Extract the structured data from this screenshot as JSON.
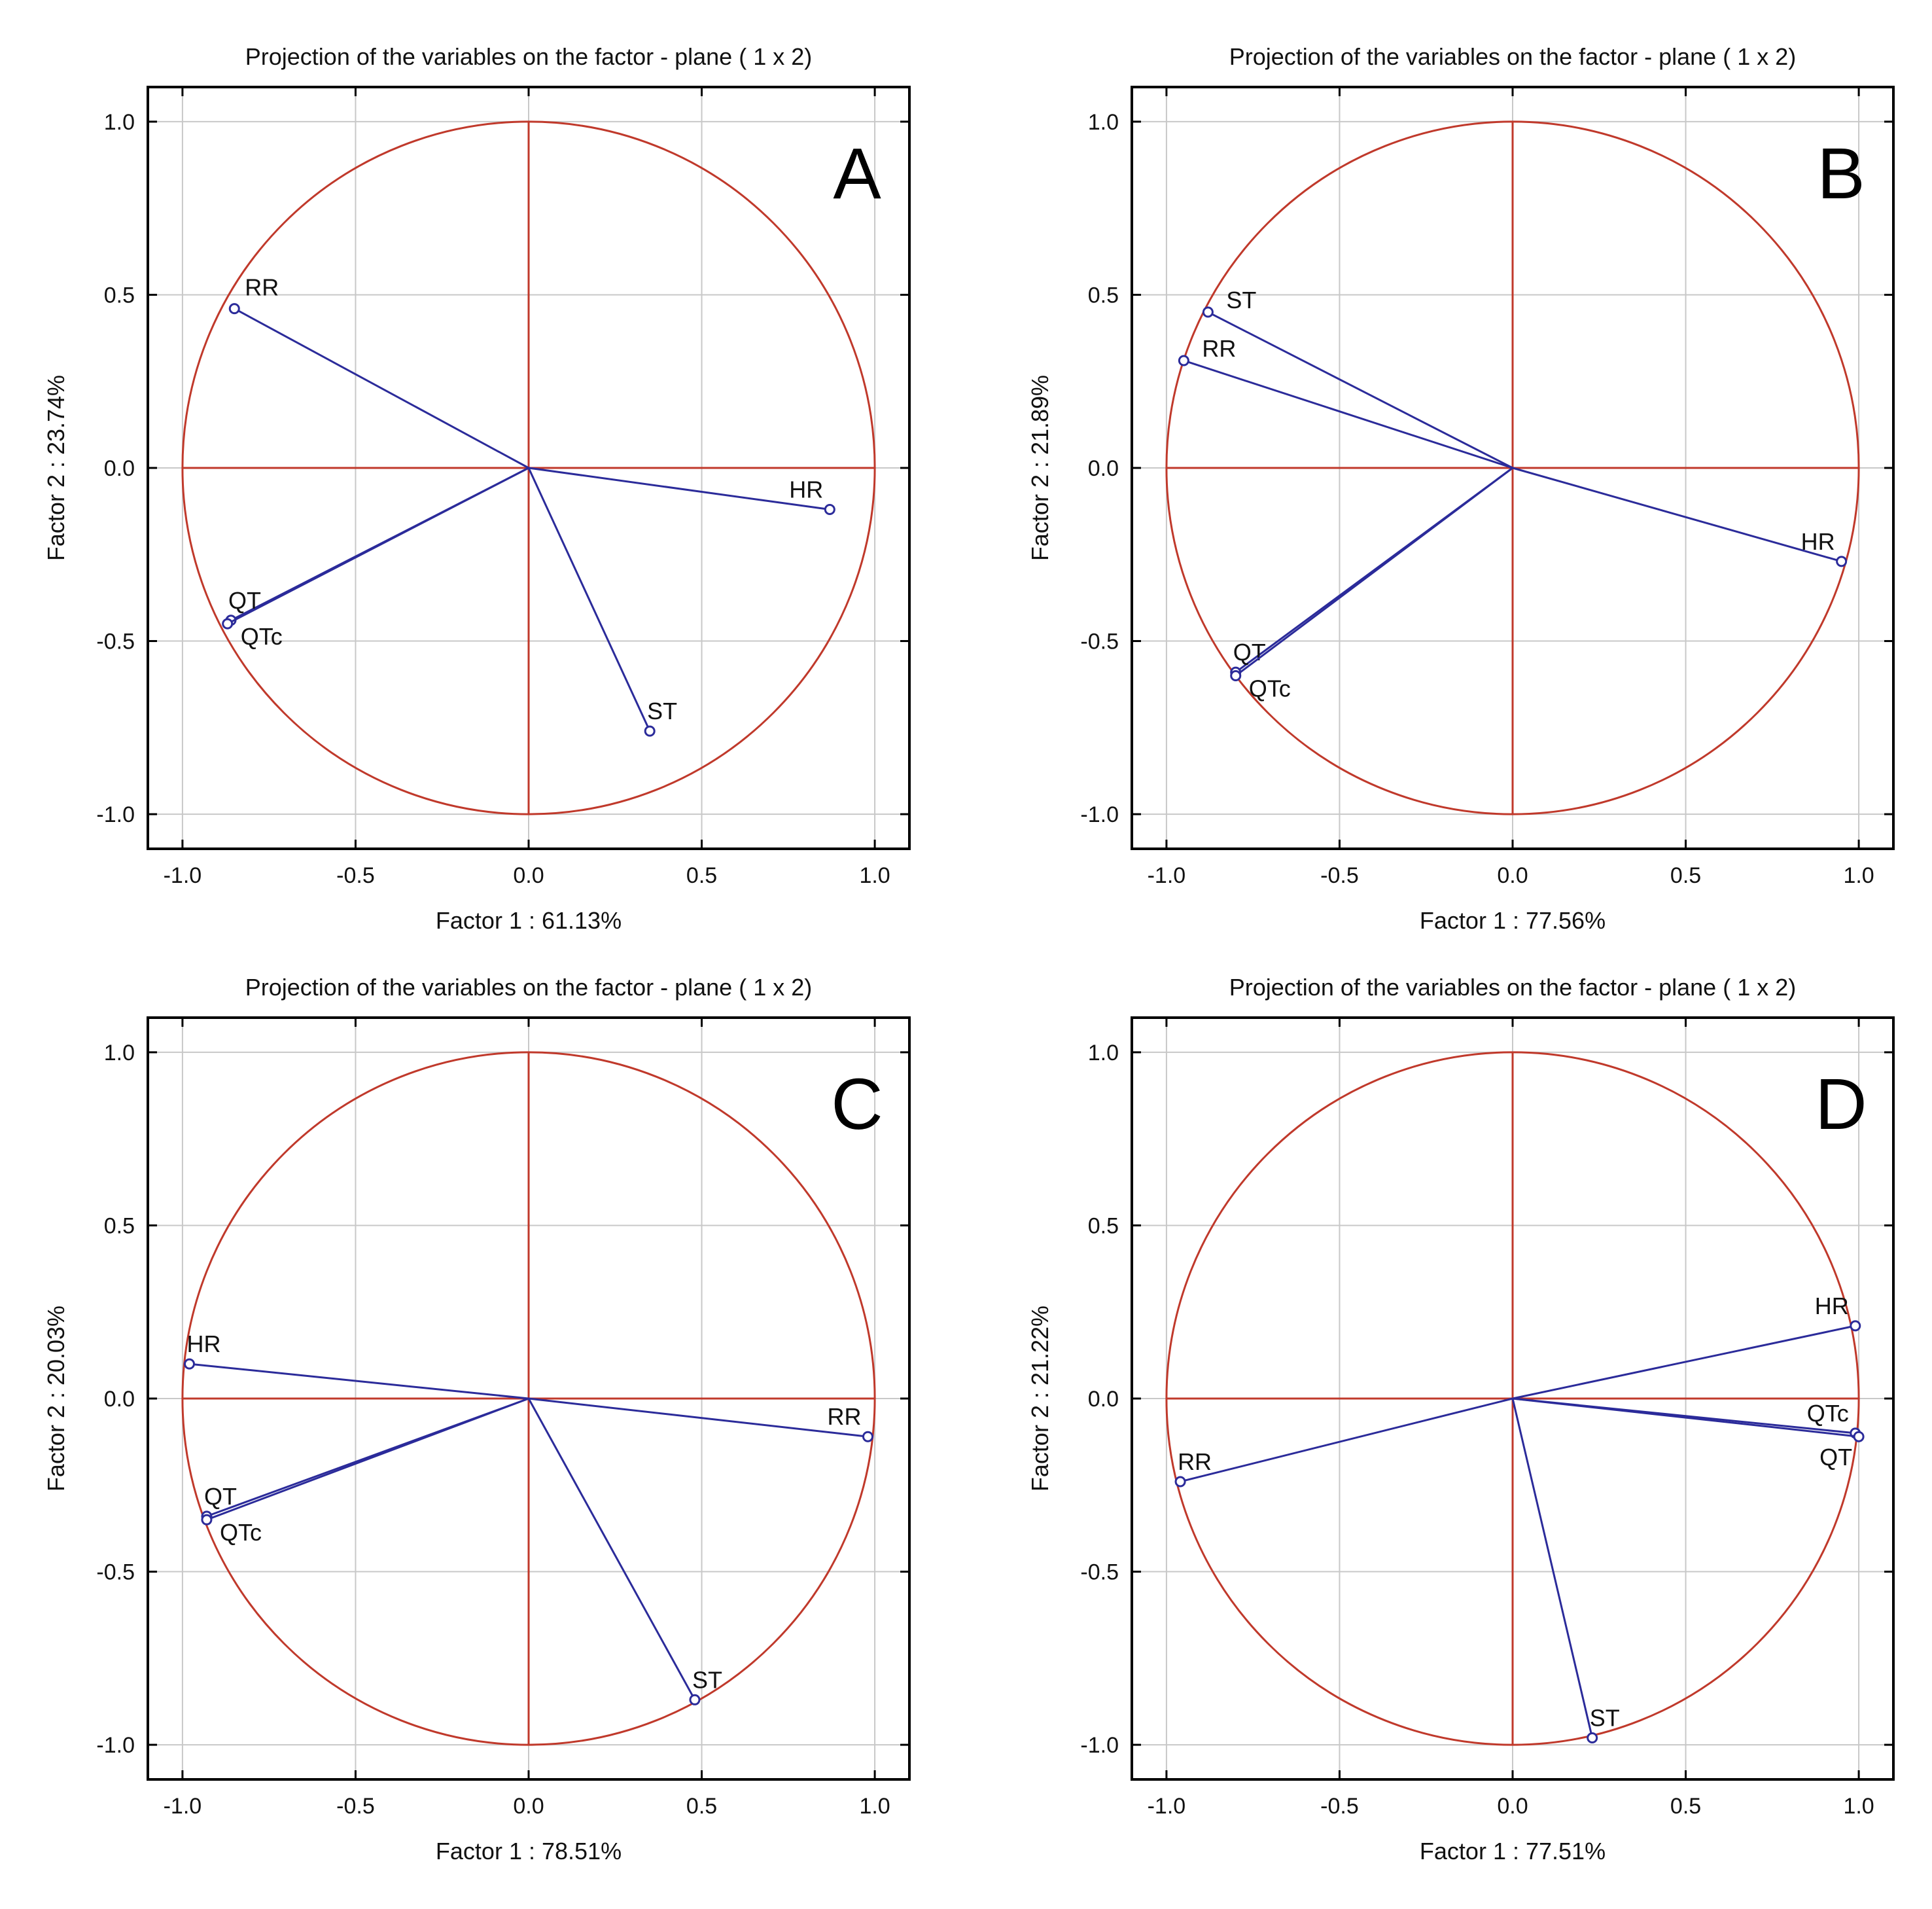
{
  "figure": {
    "panels_count": 4
  },
  "chart_data": [
    {
      "type": "scatter",
      "panel_label": "A",
      "title": "Projection of the variables on the factor - plane (  1 x  2)",
      "xlabel": "Factor 1 : 61.13%",
      "ylabel": "Factor 2 : 23.74%",
      "xlim": [
        -1.1,
        1.1
      ],
      "ylim": [
        -1.1,
        1.1
      ],
      "xticks": [
        "-1.0",
        "-0.5",
        "0.0",
        "0.5",
        "1.0"
      ],
      "yticks": [
        "-1.0",
        "-0.5",
        "0.0",
        "0.5",
        "1.0"
      ],
      "unit_circle": true,
      "grid": true,
      "points": [
        {
          "label": "RR",
          "x": -0.85,
          "y": 0.46,
          "label_pos": "above-right"
        },
        {
          "label": "HR",
          "x": 0.87,
          "y": -0.12,
          "label_pos": "above-left"
        },
        {
          "label": "QT",
          "x": -0.86,
          "y": -0.44,
          "label_pos": "above"
        },
        {
          "label": "QTc",
          "x": -0.87,
          "y": -0.45,
          "label_pos": "right-below"
        },
        {
          "label": "ST",
          "x": 0.35,
          "y": -0.76,
          "label_pos": "above"
        }
      ]
    },
    {
      "type": "scatter",
      "panel_label": "B",
      "title": "Projection of the variables on the factor - plane (  1 x  2)",
      "xlabel": "Factor 1 : 77.56%",
      "ylabel": "Factor 2 : 21.89%",
      "xlim": [
        -1.1,
        1.1
      ],
      "ylim": [
        -1.1,
        1.1
      ],
      "xticks": [
        "-1.0",
        "-0.5",
        "0.0",
        "0.5",
        "1.0"
      ],
      "yticks": [
        "-1.0",
        "-0.5",
        "0.0",
        "0.5",
        "1.0"
      ],
      "unit_circle": true,
      "grid": true,
      "points": [
        {
          "label": "ST",
          "x": -0.88,
          "y": 0.45,
          "label_pos": "right"
        },
        {
          "label": "RR",
          "x": -0.95,
          "y": 0.31,
          "label_pos": "right"
        },
        {
          "label": "HR",
          "x": 0.95,
          "y": -0.27,
          "label_pos": "above-left"
        },
        {
          "label": "QT",
          "x": -0.8,
          "y": -0.59,
          "label_pos": "above"
        },
        {
          "label": "QTc",
          "x": -0.8,
          "y": -0.6,
          "label_pos": "right-below"
        }
      ]
    },
    {
      "type": "scatter",
      "panel_label": "C",
      "title": "Projection of the variables on the factor - plane (  1 x  2)",
      "xlabel": "Factor 1 : 78.51%",
      "ylabel": "Factor 2 : 20.03%",
      "xlim": [
        -1.1,
        1.1
      ],
      "ylim": [
        -1.1,
        1.1
      ],
      "xticks": [
        "-1.0",
        "-0.5",
        "0.0",
        "0.5",
        "1.0"
      ],
      "yticks": [
        "-1.0",
        "-0.5",
        "0.0",
        "0.5",
        "1.0"
      ],
      "unit_circle": true,
      "grid": true,
      "points": [
        {
          "label": "HR",
          "x": -0.98,
          "y": 0.1,
          "label_pos": "above"
        },
        {
          "label": "RR",
          "x": 0.98,
          "y": -0.11,
          "label_pos": "above-left"
        },
        {
          "label": "QT",
          "x": -0.93,
          "y": -0.34,
          "label_pos": "above"
        },
        {
          "label": "QTc",
          "x": -0.93,
          "y": -0.35,
          "label_pos": "right-below"
        },
        {
          "label": "ST",
          "x": 0.48,
          "y": -0.87,
          "label_pos": "above"
        }
      ]
    },
    {
      "type": "scatter",
      "panel_label": "D",
      "title": "Projection of the variables on the factor - plane (  1 x  2)",
      "xlabel": "Factor 1 : 77.51%",
      "ylabel": "Factor 2 : 21.22%",
      "xlim": [
        -1.1,
        1.1
      ],
      "ylim": [
        -1.1,
        1.1
      ],
      "xticks": [
        "-1.0",
        "-0.5",
        "0.0",
        "0.5",
        "1.0"
      ],
      "yticks": [
        "-1.0",
        "-0.5",
        "0.0",
        "0.5",
        "1.0"
      ],
      "unit_circle": true,
      "grid": true,
      "points": [
        {
          "label": "HR",
          "x": 0.99,
          "y": 0.21,
          "label_pos": "above-left"
        },
        {
          "label": "QTc",
          "x": 0.99,
          "y": -0.1,
          "label_pos": "above-left"
        },
        {
          "label": "QT",
          "x": 1.0,
          "y": -0.11,
          "label_pos": "below-left"
        },
        {
          "label": "RR",
          "x": -0.96,
          "y": -0.24,
          "label_pos": "above"
        },
        {
          "label": "ST",
          "x": 0.23,
          "y": -0.98,
          "label_pos": "above"
        }
      ]
    }
  ],
  "colors": {
    "circle": "#c0392b",
    "axes_cross": "#c0392b",
    "vectors": "#2b2b9a",
    "grid": "#c8c8c8",
    "frame": "#000000",
    "text": "#111111"
  }
}
